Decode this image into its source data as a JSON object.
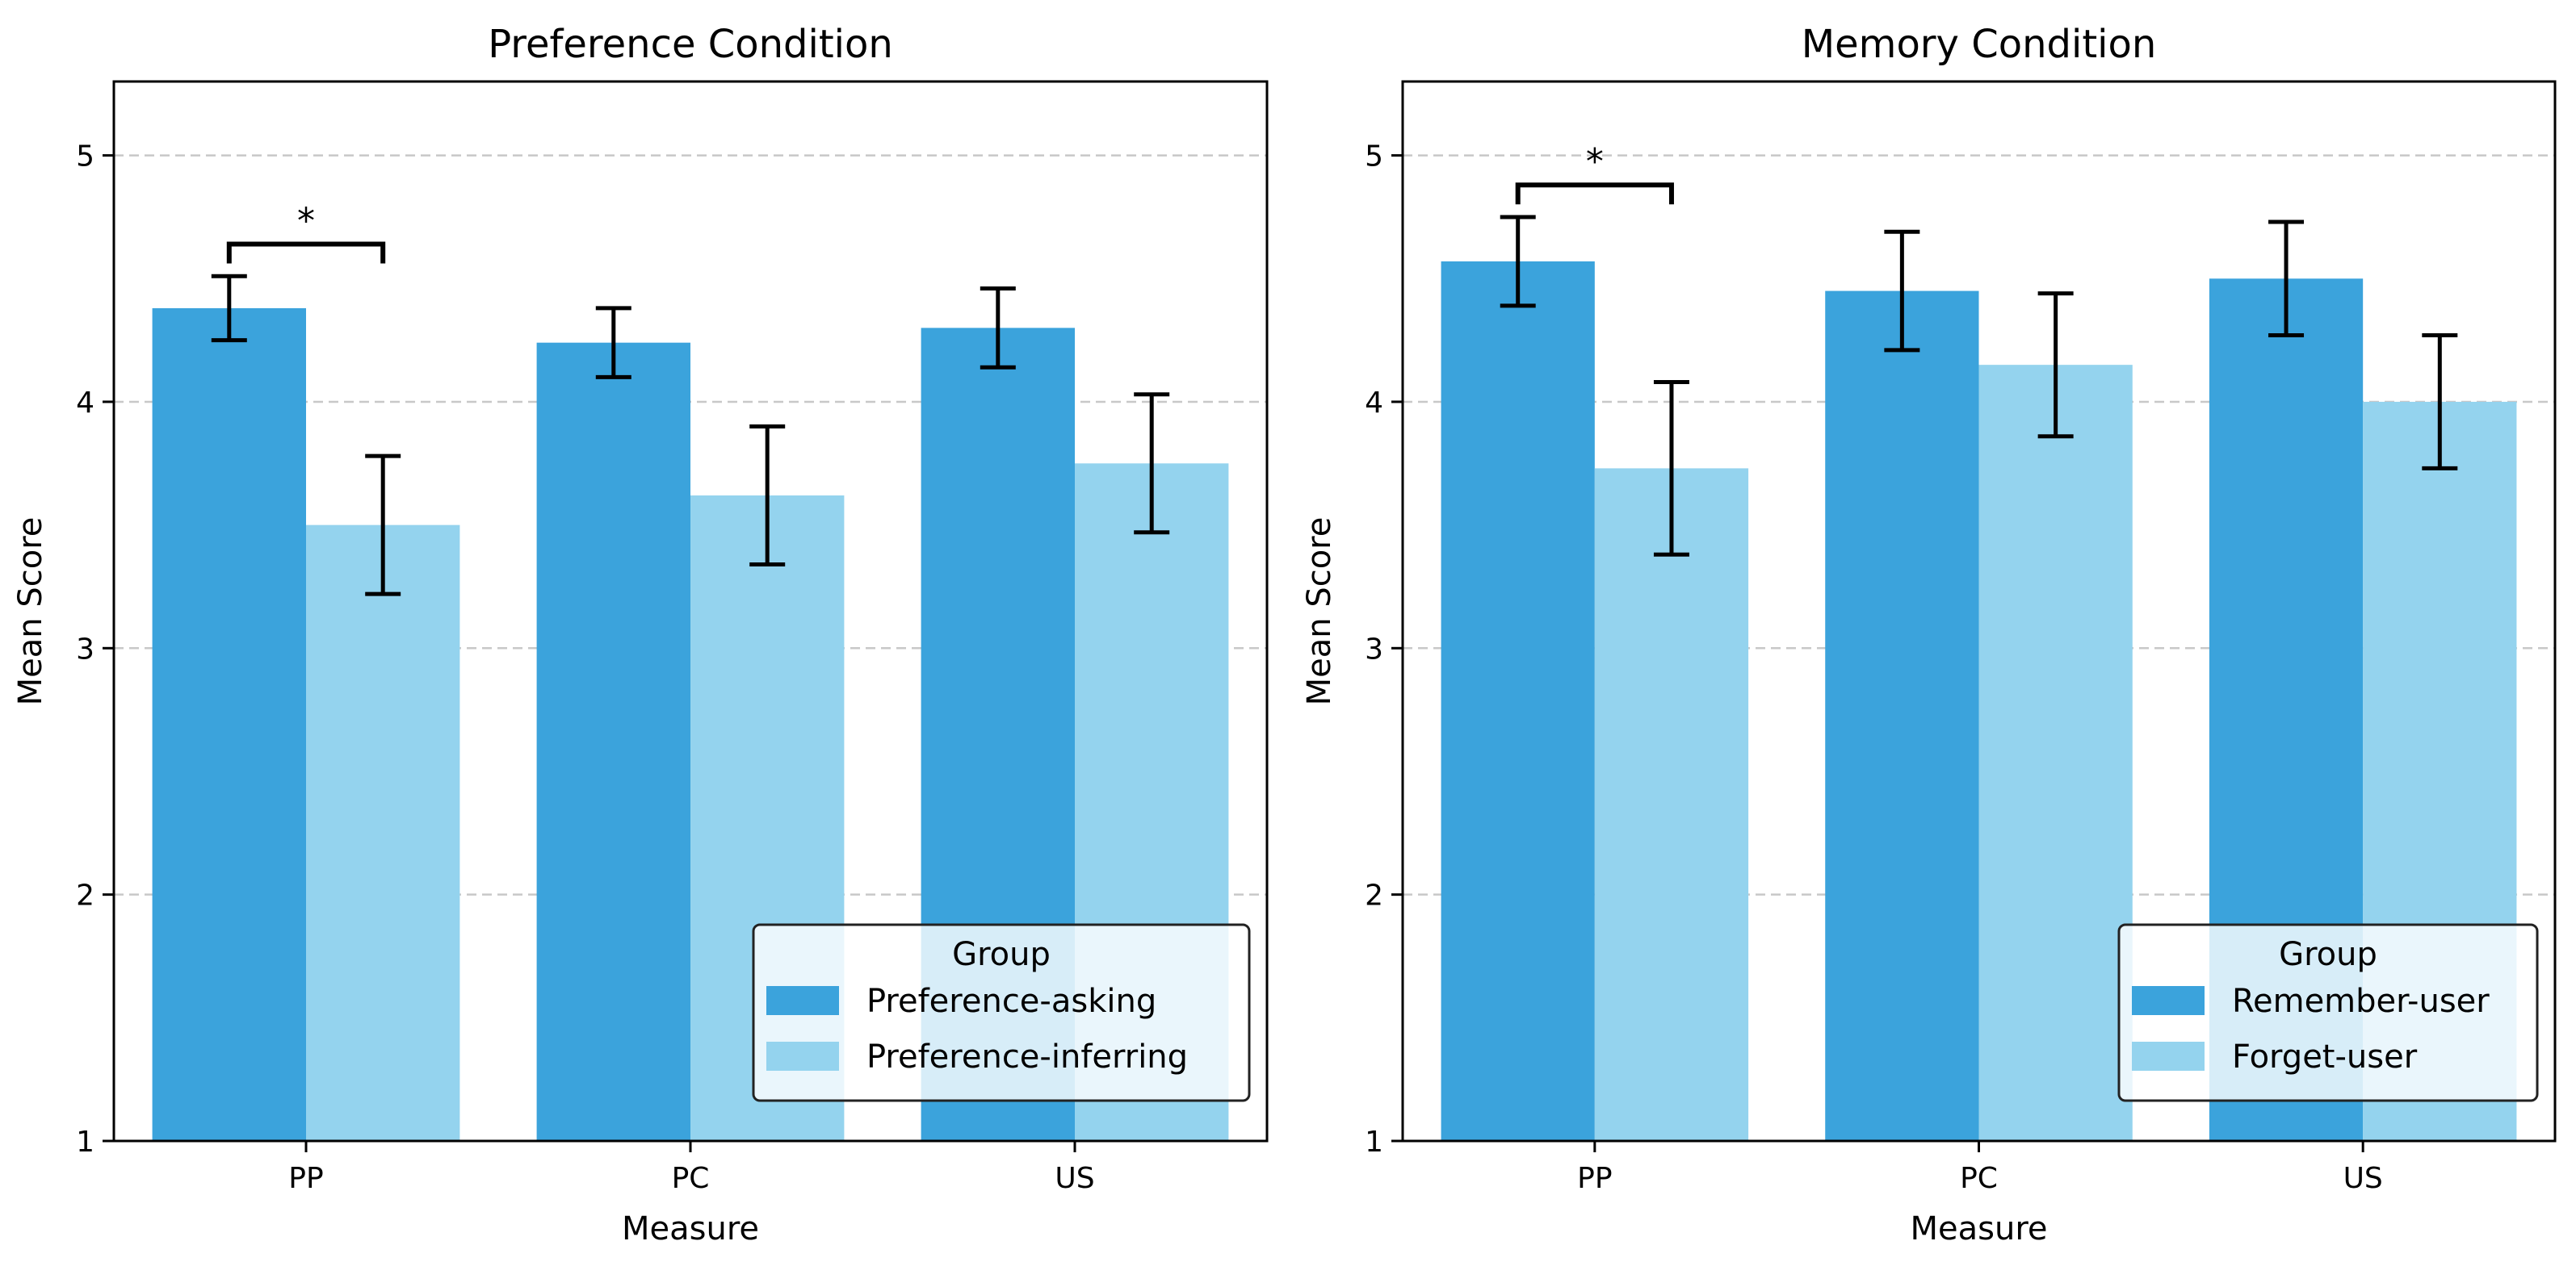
{
  "chart_data": [
    {
      "type": "bar",
      "title": "Preference Condition",
      "xlabel": "Measure",
      "ylabel": "Mean Score",
      "ylim": [
        1,
        5.3
      ],
      "yticks": [
        1,
        2,
        3,
        4,
        5
      ],
      "grid": "y-dashed",
      "categories": [
        "PP",
        "PC",
        "US"
      ],
      "series": [
        {
          "name": "Preference-asking",
          "color": "#3ba3dc",
          "values": [
            4.38,
            4.24,
            4.3
          ],
          "errors": [
            0.13,
            0.14,
            0.16
          ]
        },
        {
          "name": "Preference-inferring",
          "color": "#94d3ee",
          "values": [
            3.5,
            3.62,
            3.75
          ],
          "errors": [
            0.28,
            0.28,
            0.28
          ]
        }
      ],
      "legend": {
        "title": "Group",
        "position": "lower-right"
      },
      "significance": [
        {
          "category": "PP",
          "label": "*",
          "y": 4.64
        }
      ]
    },
    {
      "type": "bar",
      "title": "Memory Condition",
      "xlabel": "Measure",
      "ylabel": "Mean Score",
      "ylim": [
        1,
        5.3
      ],
      "yticks": [
        1,
        2,
        3,
        4,
        5
      ],
      "grid": "y-dashed",
      "categories": [
        "PP",
        "PC",
        "US"
      ],
      "series": [
        {
          "name": "Remember-user",
          "color": "#3ba3dc",
          "values": [
            4.57,
            4.45,
            4.5
          ],
          "errors": [
            0.18,
            0.24,
            0.23
          ]
        },
        {
          "name": "Forget-user",
          "color": "#94d3ee",
          "values": [
            3.73,
            4.15,
            4.0
          ],
          "errors": [
            0.35,
            0.29,
            0.27
          ]
        }
      ],
      "legend": {
        "title": "Group",
        "position": "lower-right"
      },
      "significance": [
        {
          "category": "PP",
          "label": "*",
          "y": 4.88
        }
      ]
    }
  ]
}
